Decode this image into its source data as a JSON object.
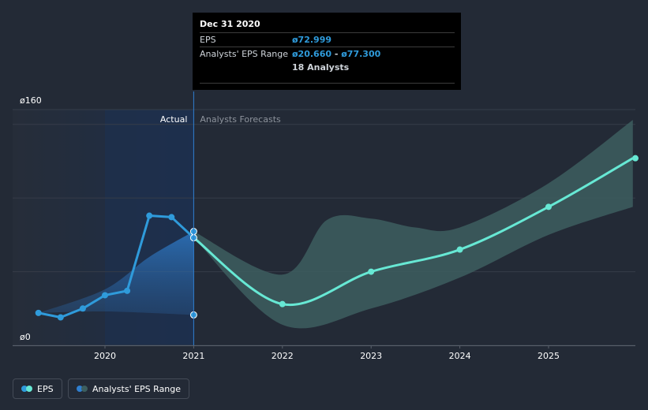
{
  "chart_data": {
    "type": "line",
    "y_axis": {
      "ticks": [
        0,
        160
      ],
      "tick_labels": [
        "ø0",
        "ø160"
      ],
      "ylim": [
        0,
        160
      ],
      "gridlines": [
        0,
        50,
        100,
        150,
        160
      ]
    },
    "x_axis": {
      "ticks": [
        2020,
        2021,
        2022,
        2023,
        2024,
        2025
      ],
      "tick_labels": [
        "2020",
        "2021",
        "2022",
        "2023",
        "2024",
        "2025"
      ],
      "xlim": [
        2019.0,
        2025.95
      ]
    },
    "divider_x": 2021.0,
    "section_labels": {
      "actual": "Actual",
      "forecast": "Analysts Forecasts"
    },
    "series": [
      {
        "name": "EPS",
        "color": "#2f9bdb",
        "points": [
          [
            2019.25,
            22
          ],
          [
            2019.5,
            19
          ],
          [
            2019.75,
            25
          ],
          [
            2020.0,
            34
          ],
          [
            2020.25,
            37
          ],
          [
            2020.5,
            88
          ],
          [
            2020.75,
            87
          ],
          [
            2021.0,
            73
          ]
        ]
      },
      {
        "name": "EPS forecast",
        "color": "#67e8d4",
        "points": [
          [
            2021.0,
            73
          ],
          [
            2022.0,
            28
          ],
          [
            2023.0,
            50
          ],
          [
            2024.0,
            65
          ],
          [
            2025.0,
            94
          ],
          [
            2025.95,
            127
          ]
        ]
      }
    ],
    "actual_range": {
      "upper": [
        [
          2019.25,
          22
        ],
        [
          2020.0,
          38
        ],
        [
          2020.5,
          60
        ],
        [
          2021.0,
          77.3
        ]
      ],
      "lower": [
        [
          2019.25,
          22
        ],
        [
          2020.0,
          23
        ],
        [
          2021.0,
          20.66
        ]
      ]
    },
    "forecast_range": {
      "upper": [
        [
          2021.0,
          77.3
        ],
        [
          2022.0,
          48
        ],
        [
          2022.5,
          85
        ],
        [
          2023.0,
          86
        ],
        [
          2023.5,
          80
        ],
        [
          2024.0,
          80
        ],
        [
          2025.0,
          110
        ],
        [
          2025.95,
          153
        ]
      ],
      "lower": [
        [
          2021.0,
          73
        ],
        [
          2022.0,
          14
        ],
        [
          2023.0,
          25
        ],
        [
          2024.0,
          46
        ],
        [
          2025.0,
          75
        ],
        [
          2025.95,
          94
        ]
      ]
    },
    "range_markers": [
      20.66,
      77.3
    ]
  },
  "tooltip": {
    "title": "Dec 31 2020",
    "eps_label": "EPS",
    "eps_value": "ø72.999",
    "range_label": "Analysts' EPS Range",
    "range_low": "ø20.660",
    "range_sep": " - ",
    "range_high": "ø77.300",
    "analysts": "18 Analysts"
  },
  "legend": {
    "eps": "EPS",
    "range": "Analysts' EPS Range"
  },
  "colors": {
    "background": "#232a36",
    "eps": "#2f9bdb",
    "forecast": "#67e8d4",
    "range_fill": "#3d5e5f"
  }
}
